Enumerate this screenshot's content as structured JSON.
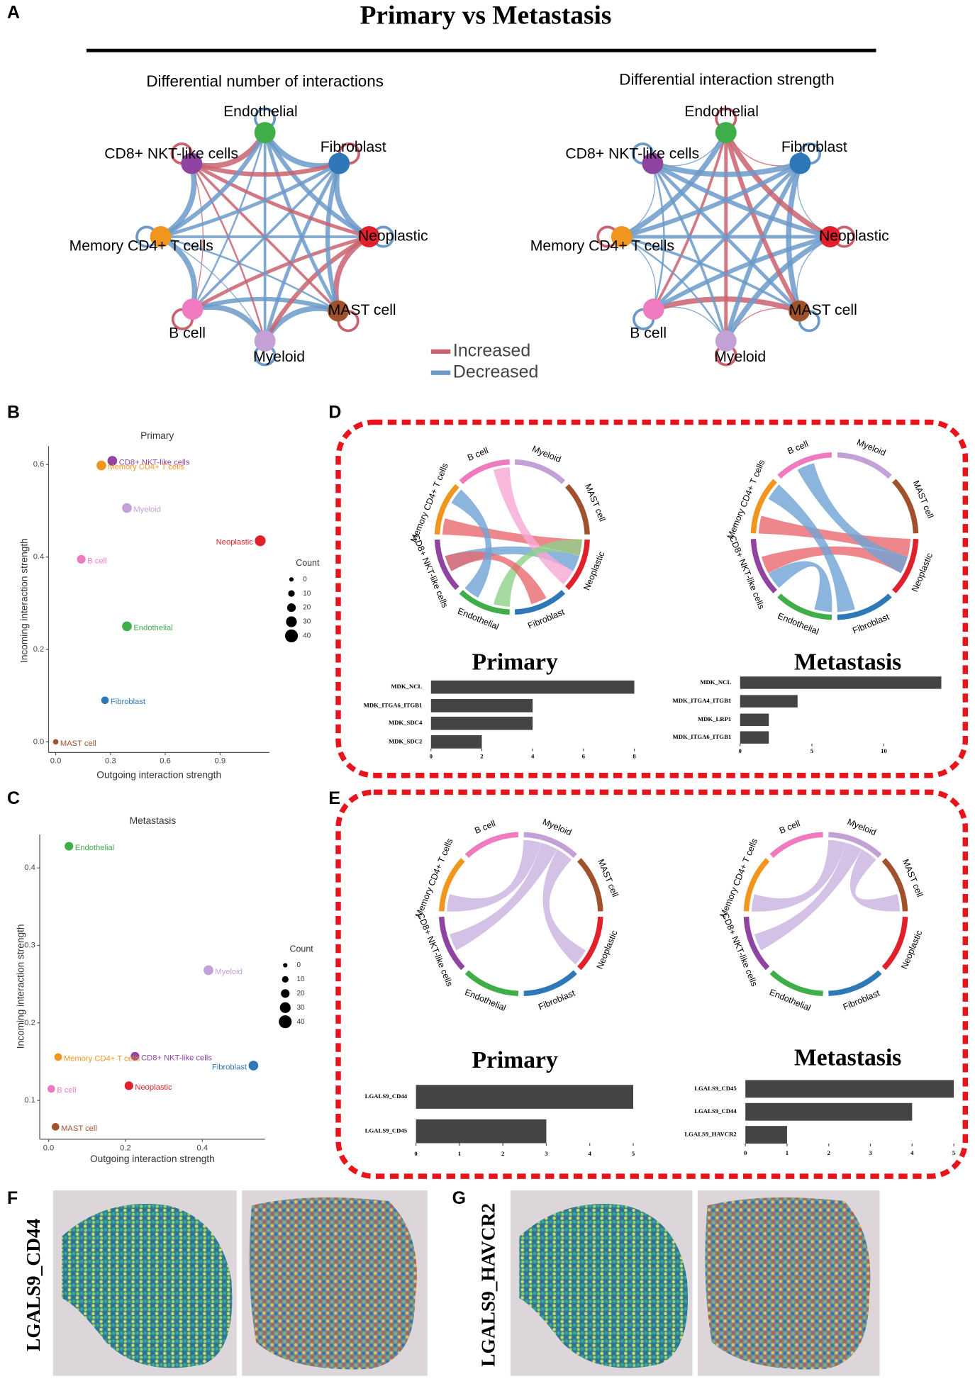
{
  "figure": {
    "title": "Primary vs Metastasis",
    "panel_labels": [
      "A",
      "B",
      "C",
      "D",
      "E",
      "F",
      "G"
    ]
  },
  "cells": [
    {
      "name": "B cell",
      "color": "#f07ac0"
    },
    {
      "name": "Myeloid",
      "color": "#c3a1d6"
    },
    {
      "name": "MAST cell",
      "color": "#a0522d"
    },
    {
      "name": "Neoplastic",
      "color": "#e0202a"
    },
    {
      "name": "Fibroblast",
      "color": "#2e78b7"
    },
    {
      "name": "Endothelial",
      "color": "#3fae49"
    },
    {
      "name": "CD8+ NKT-like cells",
      "color": "#8e44a0"
    },
    {
      "name": "Memory CD4+ T cells",
      "color": "#f0961e"
    }
  ],
  "networks": [
    {
      "title": "Differential number of interactions"
    },
    {
      "title": "Differential interaction strength"
    }
  ],
  "network_legend": [
    {
      "name": "Increased",
      "color": "#c9626e"
    },
    {
      "name": "Decreased",
      "color": "#6b9ac9"
    }
  ],
  "spatial": [
    "LGALS9_CD44",
    "LGALS9_HAVCR2"
  ],
  "chart_data": [
    {
      "type": "scatter",
      "title": "Primary",
      "xlabel": "Outgoing interaction strength",
      "ylabel": "Incoming interaction strength",
      "categories": [
        "CD8+ NKT-like cells",
        "Memory CD4+ T cells",
        "Myeloid",
        "Neoplastic",
        "B cell",
        "Endothelial",
        "Fibroblast",
        "MAST cell"
      ],
      "x": [
        0.31,
        0.25,
        0.39,
        1.12,
        0.14,
        0.39,
        0.27,
        0.0
      ],
      "values": [
        0.608,
        0.598,
        0.506,
        0.435,
        0.395,
        0.25,
        0.09,
        0.0
      ],
      "sizes": [
        25,
        25,
        25,
        30,
        20,
        25,
        15,
        5
      ],
      "colors": [
        "#8e44a0",
        "#f0961e",
        "#c3a1d6",
        "#e0202a",
        "#f07ac0",
        "#3fae49",
        "#2e78b7",
        "#a0522d"
      ],
      "xlim": [
        -0.039,
        1.17
      ],
      "ylim": [
        -0.023,
        0.64
      ],
      "xticks": [
        {
          "value": 0,
          "label": "0.0"
        },
        0.3,
        0.6,
        0.9
      ],
      "yticks": [
        {
          "value": 0,
          "label": "0.0"
        },
        0.2,
        0.4,
        0.6
      ],
      "size_legend": {
        "title": "Count",
        "values": [
          0,
          10,
          20,
          30,
          40
        ]
      }
    },
    {
      "type": "scatter",
      "title": "Metastasis",
      "xlabel": "Outgoing interaction strength",
      "ylabel": "Incoming interaction strength",
      "categories": [
        "Endothelial",
        "Myeloid",
        "CD8+ NKT-like cells",
        "Fibroblast",
        "Memory CD4+ T cells",
        "Neoplastic",
        "B cell",
        "MAST cell"
      ],
      "x": [
        0.053,
        0.416,
        0.225,
        0.533,
        0.025,
        0.209,
        0.007,
        0.018
      ],
      "values": [
        0.428,
        0.268,
        0.157,
        0.145,
        0.156,
        0.119,
        0.115,
        0.066
      ],
      "sizes": [
        20,
        25,
        20,
        25,
        15,
        20,
        15,
        15
      ],
      "colors": [
        "#3fae49",
        "#c3a1d6",
        "#8e44a0",
        "#2e78b7",
        "#f0961e",
        "#e0202a",
        "#f07ac0",
        "#a0522d"
      ],
      "xlim": [
        -0.023,
        0.563
      ],
      "ylim": [
        0.05,
        0.443
      ],
      "xticks": [
        {
          "value": 0,
          "label": "0.0"
        },
        0.2,
        0.4
      ],
      "yticks": [
        0.1,
        0.2,
        0.3,
        0.4
      ],
      "size_legend": {
        "title": "Count",
        "values": [
          0,
          10,
          20,
          30,
          40
        ]
      }
    },
    {
      "type": "hbar",
      "title": "Primary",
      "categories": [
        "MDK_NCL",
        "MDK_ITGA6_ITGB1",
        "MDK_SDC4",
        "MDK_SDC2"
      ],
      "values": [
        8,
        4,
        4,
        2
      ],
      "color": "#444444",
      "xlim": [
        0,
        8.2
      ],
      "xticks": [
        0,
        2,
        4,
        6,
        8
      ]
    },
    {
      "type": "hbar",
      "title": "Metastasis",
      "categories": [
        "MDK_NCL",
        "MDK_ITGA4_ITGB1",
        "MDK_LRP1",
        "MDK_ITGA6_ITGB1"
      ],
      "values": [
        14,
        4,
        2,
        2
      ],
      "color": "#444444",
      "xlim": [
        0,
        14.5
      ],
      "xticks": [
        0,
        5,
        10
      ]
    },
    {
      "type": "hbar",
      "title": "Primary",
      "categories": [
        "LGALS9_CD44",
        "LGALS9_CD45"
      ],
      "values": [
        5,
        3
      ],
      "color": "#444444",
      "xlim": [
        0,
        5
      ],
      "xticks": [
        0,
        1,
        2,
        3,
        4,
        5
      ]
    },
    {
      "type": "hbar",
      "title": "Metastasis",
      "categories": [
        "LGALS9_CD45",
        "LGALS9_CD44",
        "LGALS9_HAVCR2"
      ],
      "values": [
        5,
        4,
        1
      ],
      "color": "#444444",
      "xlim": [
        0,
        5
      ],
      "xticks": [
        0,
        1,
        2,
        3,
        4,
        5
      ]
    }
  ]
}
